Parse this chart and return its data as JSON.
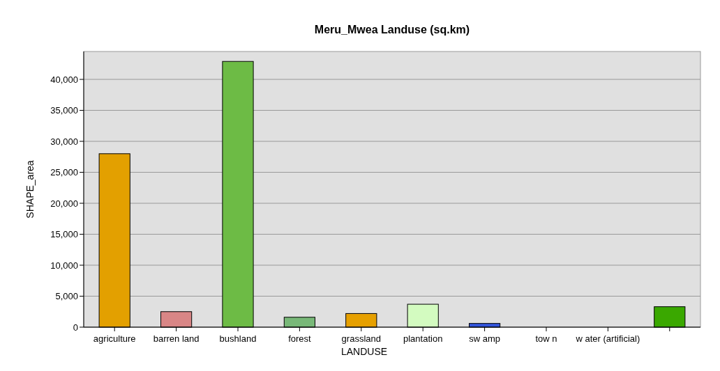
{
  "chart_data": {
    "type": "bar",
    "title": "Meru_Mwea Landuse (sq.km)",
    "xlabel": "LANDUSE",
    "ylabel": "SHAPE_area",
    "categories": [
      "agriculture",
      "barren land",
      "bushland",
      "forest",
      "grassland",
      "plantation",
      "sw amp",
      "tow n",
      "w ater (artificial)",
      null
    ],
    "values": [
      28000,
      2500,
      42900,
      1600,
      2200,
      3700,
      600,
      0,
      0,
      3300
    ],
    "colors": [
      "#e3a000",
      "#d98686",
      "#6dbb45",
      "#78b878",
      "#e6a000",
      "#d3fbc0",
      "#3355dd",
      "#a0a0a0",
      "#5a9fb5",
      "#3aa800"
    ],
    "ylim": [
      0,
      44500
    ],
    "yticks": [
      0,
      {
        "value": 5000,
        "label": "5,000"
      },
      {
        "value": 10000,
        "label": "10,000"
      },
      {
        "value": 15000,
        "label": "15,000"
      },
      {
        "value": 20000,
        "label": "20,000"
      },
      {
        "value": 25000,
        "label": "25,000"
      },
      {
        "value": 30000,
        "label": "30,000"
      },
      {
        "value": 35000,
        "label": "35,000"
      },
      {
        "value": 40000,
        "label": "40,000"
      }
    ],
    "grid": "y"
  }
}
